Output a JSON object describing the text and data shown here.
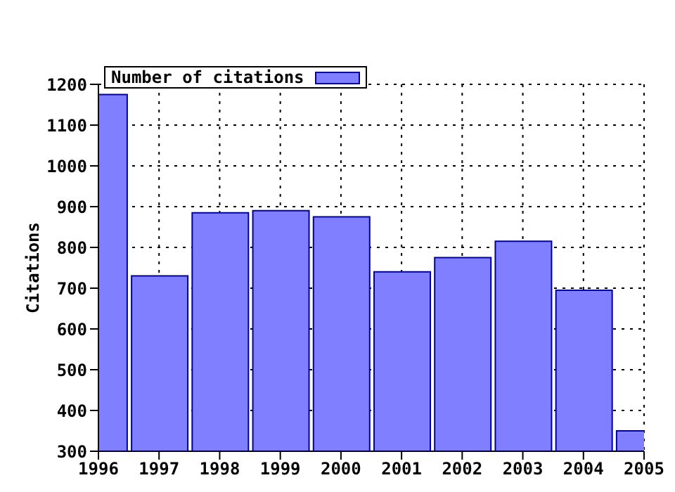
{
  "chart_data": {
    "type": "bar",
    "ylabel": "Citations",
    "x": [
      1996,
      1997,
      1998,
      1999,
      2000,
      2001,
      2002,
      2003,
      2004,
      2005
    ],
    "series": [
      {
        "name": "Number of citations",
        "color": "#7f7fff",
        "values": [
          1175,
          730,
          885,
          890,
          875,
          740,
          775,
          815,
          695,
          350
        ]
      }
    ],
    "xlim": [
      1996,
      2005
    ],
    "xticks": [
      1996,
      1997,
      1998,
      1999,
      2000,
      2001,
      2002,
      2003,
      2004,
      2005
    ],
    "ylim": [
      300,
      1200
    ],
    "yticks": [
      300,
      400,
      500,
      600,
      700,
      800,
      900,
      1000,
      1100,
      1200
    ],
    "grid": true,
    "legend": "top left"
  }
}
